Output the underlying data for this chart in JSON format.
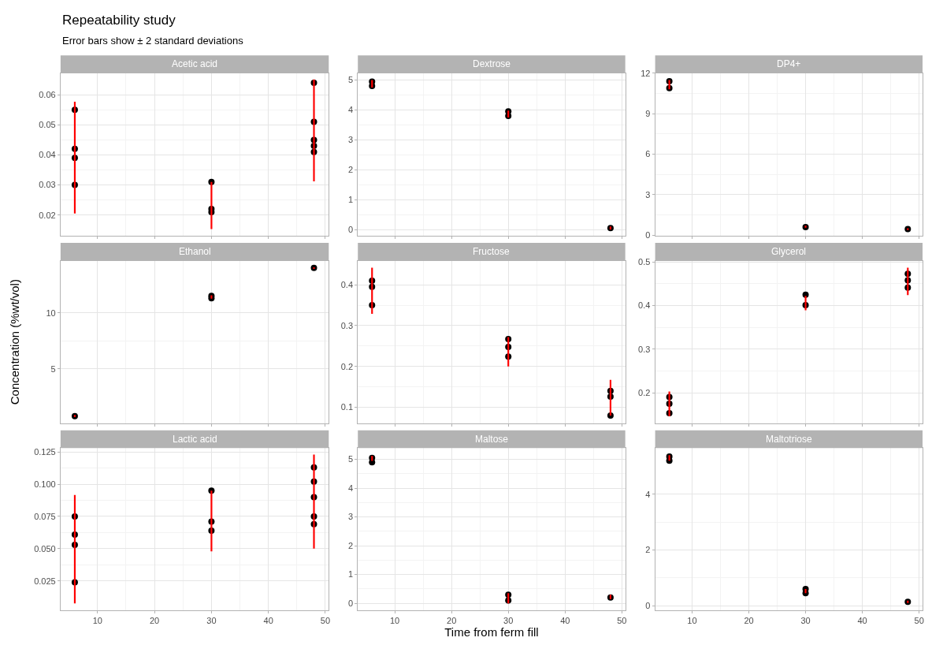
{
  "chart_data": [
    {
      "type": "other",
      "title": "Repeatability study",
      "subtitle": "Error bars show ± 2 standard deviations"
    },
    {
      "type": "scatter",
      "title": "Acetic acid",
      "marker": "circle",
      "grid": true,
      "tick_labels": "y",
      "xlim": [
        3.5,
        50.6
      ],
      "xticks": [
        10,
        20,
        30,
        40,
        50
      ],
      "ylim": [
        0.0131,
        0.0672
      ],
      "yticks": [
        0.02,
        0.03,
        0.04,
        0.05,
        0.06
      ],
      "series": [
        {
          "color": "#000000",
          "x": [
            6,
            6,
            6,
            6,
            30,
            30,
            30,
            48,
            48,
            48,
            48,
            48
          ],
          "values": [
            0.055,
            0.042,
            0.039,
            0.03,
            0.031,
            0.022,
            0.021,
            0.064,
            0.051,
            0.045,
            0.043,
            0.041
          ]
        },
        {
          "type": "bar",
          "color": "#ff0000",
          "x": [
            6,
            30,
            48
          ],
          "base": [
            0.0205,
            0.0153,
            0.0312
          ],
          "values": [
            0.0372,
            0.0157,
            0.0339
          ]
        }
      ]
    },
    {
      "type": "scatter",
      "title": "Dextrose",
      "marker": "circle",
      "grid": true,
      "tick_labels": "y",
      "xlim": [
        3.5,
        50.6
      ],
      "xticks": [
        10,
        20,
        30,
        40,
        50
      ],
      "ylim": [
        -0.21,
        5.23
      ],
      "yticks": [
        0,
        1,
        2,
        3,
        4,
        5
      ],
      "series": [
        {
          "color": "#000000",
          "x": [
            6,
            6,
            30,
            30,
            48
          ],
          "values": [
            4.95,
            4.8,
            3.95,
            3.8,
            0.05
          ]
        },
        {
          "type": "bar",
          "color": "#ff0000",
          "x": [
            6,
            30,
            48
          ],
          "base": [
            4.75,
            3.75,
            0.0
          ],
          "values": [
            0.25,
            0.23,
            0.1
          ]
        }
      ]
    },
    {
      "type": "scatter",
      "title": "DP4+",
      "marker": "circle",
      "grid": true,
      "tick_labels": "y",
      "xlim": [
        3.5,
        50.6
      ],
      "xticks": [
        10,
        20,
        30,
        40,
        50
      ],
      "ylim": [
        -0.05,
        12.0
      ],
      "yticks": [
        0,
        3,
        6,
        9,
        12
      ],
      "series": [
        {
          "color": "#000000",
          "x": [
            6,
            6,
            30,
            48
          ],
          "values": [
            11.4,
            10.9,
            0.6,
            0.45
          ]
        },
        {
          "type": "bar",
          "color": "#ff0000",
          "x": [
            6,
            30,
            48
          ],
          "base": [
            10.8,
            0.55,
            0.4
          ],
          "values": [
            0.7,
            0.15,
            0.1
          ]
        }
      ]
    },
    {
      "type": "scatter",
      "title": "Ethanol",
      "ylabel": "Concentration (%wt/vol)",
      "marker": "circle",
      "grid": true,
      "tick_labels": "y",
      "xlim": [
        3.5,
        50.6
      ],
      "xticks": [
        10,
        20,
        30,
        40,
        50
      ],
      "ylim": [
        0.16,
        14.64
      ],
      "yticks": [
        5,
        10
      ],
      "series": [
        {
          "color": "#000000",
          "x": [
            6,
            30,
            30,
            48
          ],
          "values": [
            0.8,
            11.5,
            11.3,
            14.0
          ]
        },
        {
          "type": "bar",
          "color": "#ff0000",
          "x": [
            6,
            30,
            48
          ],
          "base": [
            0.7,
            11.25,
            13.9
          ],
          "values": [
            0.2,
            0.3,
            0.15
          ]
        }
      ]
    },
    {
      "type": "scatter",
      "title": "Fructose",
      "marker": "circle",
      "grid": true,
      "tick_labels": "y",
      "xlim": [
        3.5,
        50.6
      ],
      "xticks": [
        10,
        20,
        30,
        40,
        50
      ],
      "ylim": [
        0.061,
        0.459
      ],
      "yticks": [
        0.1,
        0.2,
        0.3,
        0.4
      ],
      "series": [
        {
          "color": "#000000",
          "x": [
            6,
            6,
            6,
            30,
            30,
            30,
            48,
            48,
            48
          ],
          "values": [
            0.41,
            0.395,
            0.35,
            0.267,
            0.248,
            0.224,
            0.14,
            0.126,
            0.08
          ]
        },
        {
          "type": "bar",
          "color": "#ff0000",
          "x": [
            6,
            30,
            48
          ],
          "base": [
            0.329,
            0.2,
            0.08
          ],
          "values": [
            0.113,
            0.072,
            0.087
          ]
        }
      ]
    },
    {
      "type": "scatter",
      "title": "Glycerol",
      "marker": "circle",
      "grid": true,
      "tick_labels": "y",
      "xlim": [
        3.5,
        50.6
      ],
      "xticks": [
        10,
        20,
        30,
        40,
        50
      ],
      "ylim": [
        0.13,
        0.503
      ],
      "yticks": [
        0.2,
        0.3,
        0.4,
        0.5
      ],
      "series": [
        {
          "color": "#000000",
          "x": [
            6,
            6,
            6,
            30,
            30,
            48,
            48,
            48
          ],
          "values": [
            0.19,
            0.175,
            0.153,
            0.425,
            0.401,
            0.473,
            0.458,
            0.441
          ]
        },
        {
          "type": "bar",
          "color": "#ff0000",
          "x": [
            6,
            30,
            48
          ],
          "base": [
            0.146,
            0.389,
            0.424
          ],
          "values": [
            0.057,
            0.033,
            0.063
          ]
        }
      ]
    },
    {
      "type": "scatter",
      "title": "Lactic acid",
      "marker": "circle",
      "grid": true,
      "xlim": [
        3.5,
        50.6
      ],
      "xticks": [
        10,
        20,
        30,
        40,
        50
      ],
      "ylim": [
        0.0025,
        0.128
      ],
      "yticks": [
        0.025,
        {
          "value": 0.05,
          "label": "0.050"
        },
        0.075,
        {
          "value": 0.1,
          "label": "0.100"
        },
        0.125
      ],
      "series": [
        {
          "color": "#000000",
          "x": [
            6,
            6,
            6,
            6,
            30,
            30,
            30,
            48,
            48,
            48,
            48,
            48
          ],
          "values": [
            0.075,
            0.061,
            0.053,
            0.024,
            0.095,
            0.071,
            0.064,
            0.113,
            0.102,
            0.09,
            0.075,
            0.069
          ]
        },
        {
          "type": "bar",
          "color": "#ff0000",
          "x": [
            6,
            30,
            48
          ],
          "base": [
            0.0076,
            0.048,
            0.05
          ],
          "values": [
            0.0841,
            0.047,
            0.073
          ]
        }
      ]
    },
    {
      "type": "scatter",
      "title": "Maltose",
      "xlabel": "Time from ferm fill",
      "marker": "circle",
      "grid": true,
      "xlim": [
        3.5,
        50.6
      ],
      "xticks": [
        10,
        20,
        30,
        40,
        50
      ],
      "ylim": [
        -0.23,
        5.39
      ],
      "yticks": [
        0,
        1,
        2,
        3,
        4,
        5
      ],
      "series": [
        {
          "color": "#000000",
          "x": [
            6,
            6,
            30,
            30,
            48
          ],
          "values": [
            5.05,
            4.9,
            0.3,
            0.1,
            0.2
          ]
        },
        {
          "type": "bar",
          "color": "#ff0000",
          "x": [
            6,
            30,
            48
          ],
          "base": [
            4.95,
            0.0,
            0.15
          ],
          "values": [
            0.17,
            0.35,
            0.15
          ]
        }
      ]
    },
    {
      "type": "scatter",
      "title": "Maltotriose",
      "marker": "circle",
      "grid": true,
      "xlim": [
        3.5,
        50.6
      ],
      "xticks": [
        10,
        20,
        30,
        40,
        50
      ],
      "ylim": [
        -0.15,
        5.65
      ],
      "yticks": [
        0,
        2,
        4
      ],
      "series": [
        {
          "color": "#000000",
          "x": [
            6,
            6,
            30,
            30,
            48
          ],
          "values": [
            5.35,
            5.2,
            0.6,
            0.45,
            0.14
          ]
        },
        {
          "type": "bar",
          "color": "#ff0000",
          "x": [
            6,
            30,
            48
          ],
          "base": [
            5.2,
            0.45,
            0.1
          ],
          "values": [
            0.2,
            0.15,
            0.08
          ]
        }
      ]
    }
  ]
}
